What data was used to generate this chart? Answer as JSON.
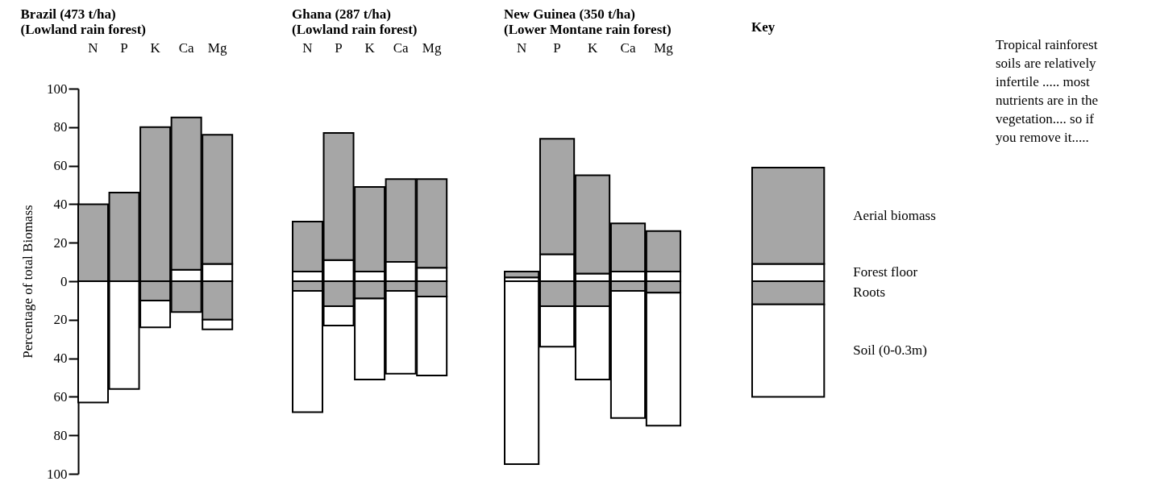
{
  "chart_data": [
    {
      "type": "bar",
      "stacked": true,
      "title": "Brazil (473 t/ha)",
      "subtitle": "(Lowland rain forest)",
      "ylabel": "Percentage of total Biomass",
      "categories": [
        "N",
        "P",
        "K",
        "Ca",
        "Mg"
      ],
      "ylim": [
        -100,
        100
      ],
      "yticks": [
        {
          "value": -100,
          "label": "100"
        },
        {
          "value": -80,
          "label": "80"
        },
        {
          "value": -60,
          "label": "60"
        },
        {
          "value": -40,
          "label": "40"
        },
        {
          "value": -20,
          "label": "20"
        },
        0,
        20,
        40,
        60,
        80,
        100
      ],
      "series": [
        {
          "color": "#ffffff",
          "values": [
            null,
            null,
            null,
            6,
            9
          ]
        },
        {
          "color": "#a6a6a6",
          "values": [
            40,
            46,
            80,
            79,
            67
          ]
        },
        {
          "color": "#a6a6a6",
          "values": [
            null,
            null,
            -10,
            -16,
            -20
          ]
        },
        {
          "color": "#ffffff",
          "values": [
            -63,
            -56,
            -14,
            null,
            -5
          ]
        }
      ]
    },
    {
      "type": "bar",
      "stacked": true,
      "title": "Ghana (287 t/ha)",
      "subtitle": "(Lowland rain forest)",
      "tick_labels": "x",
      "categories": [
        "N",
        "P",
        "K",
        "Ca",
        "Mg"
      ],
      "ylim": [
        -100,
        100
      ],
      "series": [
        {
          "color": "#ffffff",
          "values": [
            5,
            11,
            5,
            10,
            7
          ]
        },
        {
          "color": "#a6a6a6",
          "values": [
            26,
            66,
            44,
            43,
            46
          ]
        },
        {
          "color": "#a6a6a6",
          "values": [
            -5,
            -13,
            -9,
            -5,
            -8
          ]
        },
        {
          "color": "#ffffff",
          "values": [
            -63,
            -10,
            -42,
            -43,
            -41
          ]
        }
      ]
    },
    {
      "type": "bar",
      "stacked": true,
      "title": "New Guinea (350 t/ha)",
      "subtitle": "(Lower Montane rain forest)",
      "tick_labels": "x",
      "categories": [
        "N",
        "P",
        "K",
        "Ca",
        "Mg"
      ],
      "ylim": [
        -100,
        100
      ],
      "series": [
        {
          "color": "#ffffff",
          "values": [
            2,
            14,
            4,
            5,
            5
          ]
        },
        {
          "color": "#a6a6a6",
          "values": [
            3,
            60,
            51,
            25,
            21
          ]
        },
        {
          "color": "#a6a6a6",
          "values": [
            null,
            -13,
            -13,
            -5,
            -6
          ]
        },
        {
          "color": "#ffffff",
          "values": [
            -95,
            -21,
            -38,
            -66,
            -69
          ]
        }
      ]
    },
    {
      "type": "bar",
      "stacked": true,
      "title": "Key",
      "tick_labels": "x",
      "legend": "right",
      "categories": [
        null
      ],
      "ylim": [
        -100,
        100
      ],
      "annotations": [
        "Tropical rainforest soils are relatively infertile ..... most nutrients are in the vegetation.... so if you remove it....."
      ],
      "series": [
        {
          "name": "Forest floor",
          "color": "#ffffff",
          "values": [
            9
          ]
        },
        {
          "name": "Aerial biomass",
          "color": "#a6a6a6",
          "values": [
            50
          ]
        },
        {
          "name": "Roots",
          "color": "#a6a6a6",
          "values": [
            -12
          ]
        },
        {
          "name": "Soil (0-0.3m)",
          "color": "#ffffff",
          "values": [
            -48
          ]
        }
      ]
    }
  ]
}
